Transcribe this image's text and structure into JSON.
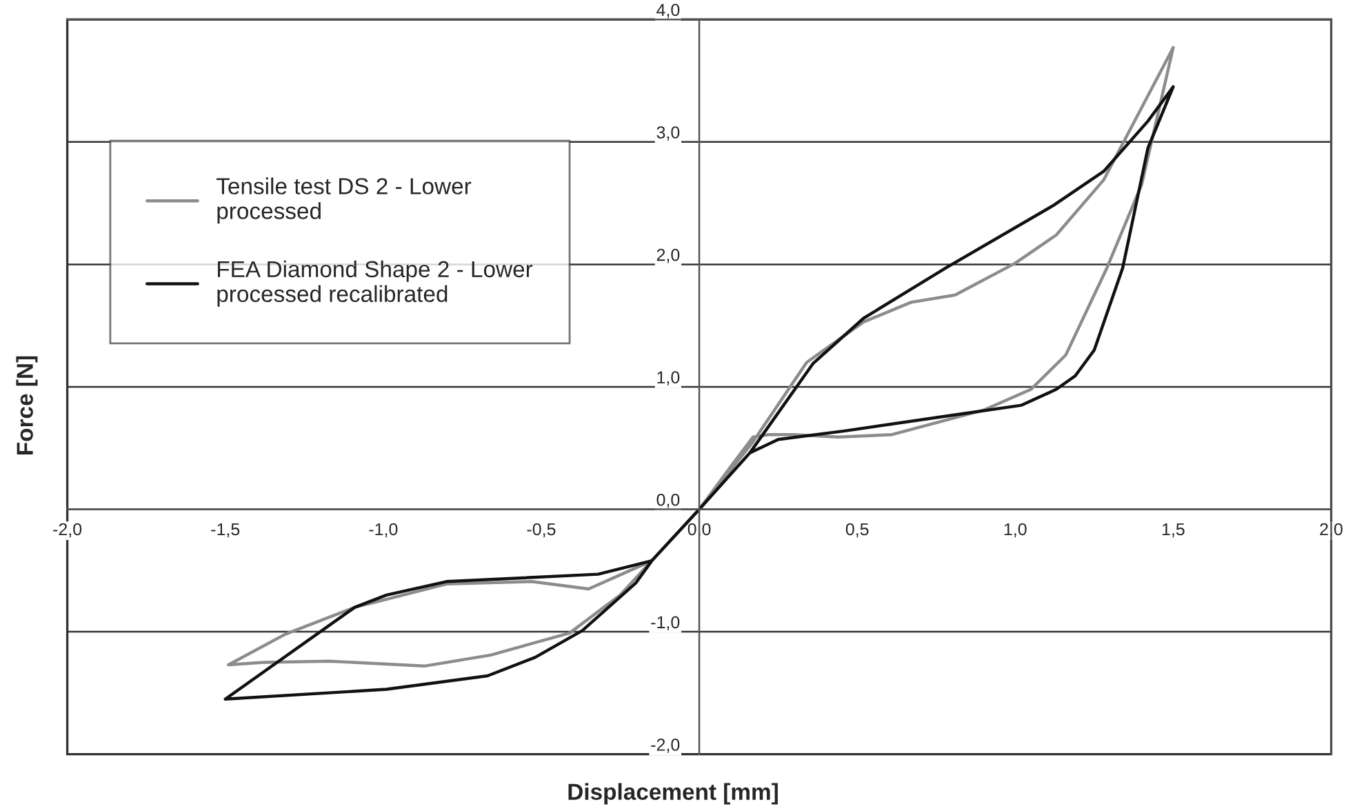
{
  "chart_data": {
    "type": "line",
    "xlabel": "Displacement [mm]",
    "ylabel": "Force [N]",
    "xlim": [
      -2.0,
      2.0
    ],
    "ylim": [
      -2.0,
      4.0
    ],
    "xticks": [
      {
        "value": -2.0,
        "label": "-2,0"
      },
      {
        "value": -1.5,
        "label": "-1,5"
      },
      {
        "value": -1.0,
        "label": "-1,0"
      },
      {
        "value": -0.5,
        "label": "-0,5"
      },
      {
        "value": 0.0,
        "label": "0,0"
      },
      {
        "value": 0.5,
        "label": "0,5"
      },
      {
        "value": 1.0,
        "label": "1,0"
      },
      {
        "value": 1.5,
        "label": "1,5"
      },
      {
        "value": 2.0,
        "label": "2,0"
      }
    ],
    "yticks": [
      {
        "value": -2.0,
        "label": "-2,0"
      },
      {
        "value": -1.0,
        "label": "-1,0"
      },
      {
        "value": 0.0,
        "label": "0,0"
      },
      {
        "value": 1.0,
        "label": "1,0"
      },
      {
        "value": 2.0,
        "label": "2,0"
      },
      {
        "value": 3.0,
        "label": "3,0"
      },
      {
        "value": 4.0,
        "label": "4,0"
      }
    ],
    "grid": "y",
    "legend": "top left",
    "series": [
      {
        "name": "Tensile test DS 2 - Lower\nprocessed",
        "color": "#8c8c8c",
        "x": [
          0,
          0.17,
          0.34,
          0.52,
          0.67,
          0.81,
          1.0,
          1.13,
          1.28,
          1.5,
          null,
          1.5,
          1.4,
          1.29,
          1.16,
          1.05,
          0.9,
          0.61,
          0.44,
          0.3,
          0.22,
          0.17,
          0.1,
          0,
          null,
          0,
          -0.15,
          -0.35,
          -0.53,
          -0.8,
          -1.09,
          -1.31,
          -1.49,
          null,
          -1.49,
          -1.38,
          -1.17,
          -0.87,
          -0.66,
          -0.41,
          -0.25,
          -0.15,
          0
        ],
        "values": [
          0,
          0.55,
          1.2,
          1.53,
          1.69,
          1.75,
          2.01,
          2.24,
          2.69,
          3.77,
          null,
          3.77,
          2.65,
          1.97,
          1.26,
          0.98,
          0.81,
          0.61,
          0.59,
          0.61,
          0.61,
          0.59,
          0.35,
          0,
          null,
          0,
          -0.42,
          -0.65,
          -0.59,
          -0.61,
          -0.8,
          -1.02,
          -1.27,
          null,
          -1.27,
          -1.25,
          -1.24,
          -1.28,
          -1.19,
          -1.01,
          -0.7,
          -0.42,
          0
        ]
      },
      {
        "name": "FEA Diamond Shape 2 - Lower\nprocessed recalibrated",
        "color": "#111111",
        "x": [
          0,
          0.16,
          0.36,
          0.52,
          0.78,
          1.12,
          1.28,
          1.42,
          1.5,
          null,
          1.5,
          1.42,
          1.34,
          1.25,
          1.19,
          1.13,
          1.02,
          0.78,
          0.46,
          0.25,
          0.16,
          0,
          null,
          0,
          -0.15,
          -0.32,
          -0.8,
          -0.99,
          -1.09,
          -1.5,
          null,
          -1.5,
          -0.99,
          -0.67,
          -0.52,
          -0.37,
          -0.2,
          -0.15,
          0
        ],
        "values": [
          0,
          0.46,
          1.19,
          1.56,
          1.97,
          2.48,
          2.76,
          3.17,
          3.45,
          null,
          3.45,
          2.95,
          1.97,
          1.3,
          1.09,
          0.98,
          0.85,
          0.76,
          0.64,
          0.57,
          0.46,
          0,
          null,
          0,
          -0.42,
          -0.53,
          -0.59,
          -0.7,
          -0.8,
          -1.55,
          null,
          -1.55,
          -1.47,
          -1.36,
          -1.21,
          -0.99,
          -0.6,
          -0.42,
          0
        ]
      }
    ]
  }
}
